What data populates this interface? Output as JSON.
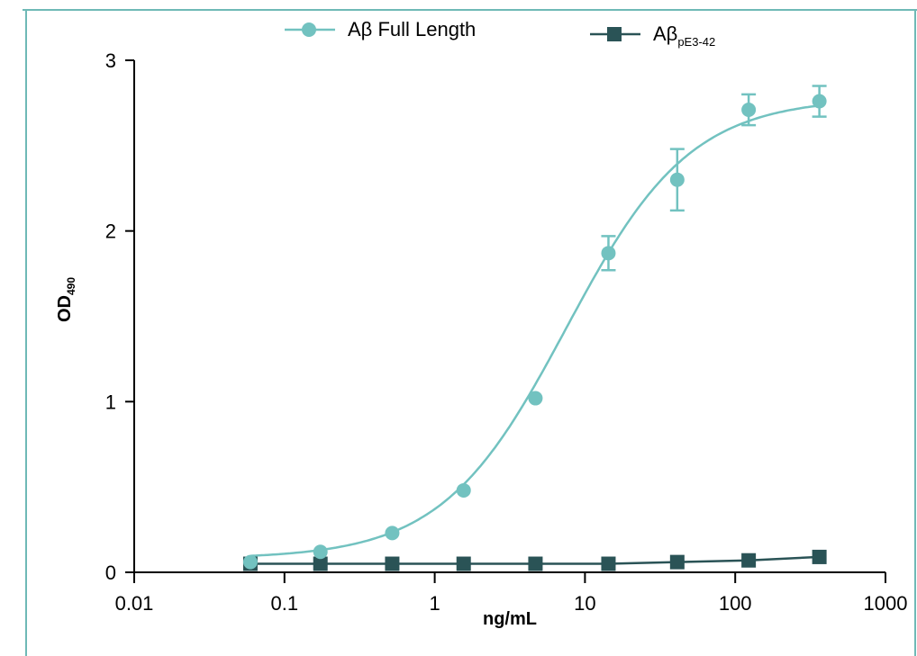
{
  "chart_data": {
    "type": "line",
    "xscale": "log",
    "xlim": [
      0.01,
      1000
    ],
    "ylim": [
      0,
      3
    ],
    "xlabel": "ng/mL",
    "ylabel": {
      "main": "OD",
      "sub": "490"
    },
    "xticks": [
      {
        "value": 0.01,
        "label": "0.01"
      },
      {
        "value": 0.1,
        "label": "0.1"
      },
      {
        "value": 1,
        "label": "1"
      },
      {
        "value": 10,
        "label": "10"
      },
      {
        "value": 100,
        "label": "100"
      },
      {
        "value": 1000,
        "label": "1000"
      }
    ],
    "yticks": [
      {
        "value": 0,
        "label": "0"
      },
      {
        "value": 1,
        "label": "1"
      },
      {
        "value": 2,
        "label": "2"
      },
      {
        "value": 3,
        "label": "3"
      }
    ],
    "legend_position": "top",
    "series": [
      {
        "name": "Aβ Full Length",
        "name_main": "Aβ Full Length",
        "name_sub": "",
        "marker": "circle",
        "color": "#72c2c0",
        "x": [
          0.0593,
          0.1735,
          0.5214,
          1.5581,
          4.6823,
          14.33,
          41.13,
          122.86,
          363.13
        ],
        "y": [
          0.06,
          0.12,
          0.23,
          0.48,
          1.02,
          1.87,
          2.3,
          2.71,
          2.76
        ],
        "error": [
          0.0,
          0.0,
          0.0,
          0.0,
          0.0,
          0.1,
          0.18,
          0.09,
          0.09
        ],
        "fit": {
          "bottom": 0.08,
          "top": 2.78,
          "ec50": 7.5,
          "hill": 1.05
        }
      },
      {
        "name": "AβpE3-42",
        "name_main": "Aβ",
        "name_sub": "pE3-42",
        "marker": "square",
        "color": "#2a5356",
        "x": [
          0.0593,
          0.1735,
          0.5214,
          1.5581,
          4.6823,
          14.33,
          41.13,
          122.86,
          363.13
        ],
        "y": [
          0.05,
          0.05,
          0.05,
          0.05,
          0.05,
          0.05,
          0.06,
          0.07,
          0.09
        ],
        "error": [
          0,
          0,
          0,
          0,
          0,
          0,
          0,
          0,
          0
        ]
      }
    ]
  },
  "colors": {
    "frame": "#6fb9b6"
  }
}
